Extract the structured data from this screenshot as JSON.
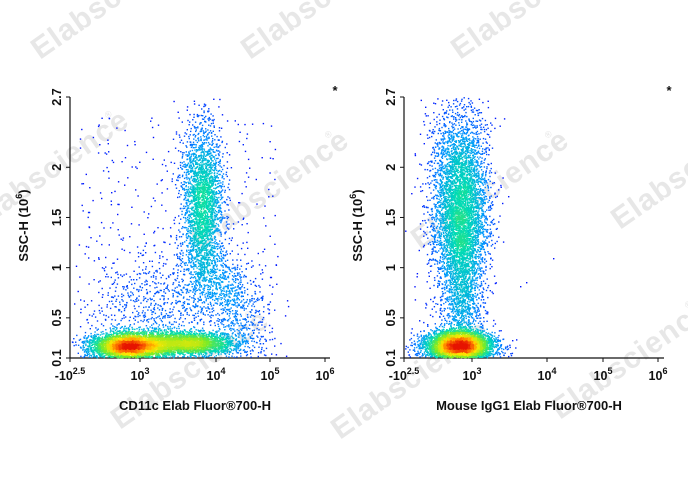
{
  "watermark": {
    "text": "Elabscience",
    "mark": "®"
  },
  "chart_data": [
    {
      "type": "scatter",
      "title": "",
      "xlabel": "CD11c Elab Fluor®700-H",
      "ylabel": {
        "base": "SSC-H (10",
        "exp": "6",
        "close": ")"
      },
      "corner_mark": "*",
      "x_scale": "biexponential",
      "x_ticks": [
        {
          "base": "-10",
          "exp": "2.5",
          "v": -316
        },
        {
          "base": "10",
          "exp": "3",
          "v": 1000
        },
        {
          "base": "10",
          "exp": "4",
          "v": 10000
        },
        {
          "base": "10",
          "exp": "5",
          "v": 100000
        },
        {
          "base": "10",
          "exp": "6",
          "v": 1000000
        }
      ],
      "y_ticks": [
        {
          "label": "0.1",
          "v": 0.1
        },
        {
          "label": "0.5",
          "v": 0.5
        },
        {
          "label": "1",
          "v": 1
        },
        {
          "label": "1.5",
          "v": 1.5
        },
        {
          "label": "2",
          "v": 2
        },
        {
          "label": "2.7",
          "v": 2.7
        }
      ],
      "ylim": [
        0.1,
        2.7
      ],
      "populations": [
        {
          "x": 320,
          "y": 0.22,
          "count": 4200
        },
        {
          "x": 4000,
          "y": 0.25,
          "count": 2600
        },
        {
          "x": 6500,
          "y": 1.6,
          "count": 2800
        },
        {
          "x": 13000,
          "y": 0.85,
          "count": 320
        },
        {
          "x": 30000,
          "y": 0.45,
          "count": 380
        },
        {
          "x": 1800,
          "y": 0.6,
          "count": 700
        }
      ]
    },
    {
      "type": "scatter",
      "title": "",
      "xlabel": "Mouse IgG1 Elab Fluor®700-H",
      "ylabel": {
        "base": "SSC-H (10",
        "exp": "6",
        "close": ")"
      },
      "corner_mark": "*",
      "x_scale": "biexponential",
      "x_ticks": [
        {
          "base": "-10",
          "exp": "2.5",
          "v": -316
        },
        {
          "base": "10",
          "exp": "3",
          "v": 1000
        },
        {
          "base": "10",
          "exp": "4",
          "v": 10000
        },
        {
          "base": "10",
          "exp": "5",
          "v": 100000
        },
        {
          "base": "10",
          "exp": "6",
          "v": 1000000
        }
      ],
      "y_ticks": [
        {
          "label": "0.1",
          "v": 0.1
        },
        {
          "label": "0.5",
          "v": 0.5
        },
        {
          "label": "1",
          "v": 1
        },
        {
          "label": "1.5",
          "v": 1.5
        },
        {
          "label": "2",
          "v": 2
        },
        {
          "label": "2.7",
          "v": 2.7
        }
      ],
      "ylim": [
        0.1,
        2.7
      ],
      "populations": [
        {
          "x": 250,
          "y": 0.22,
          "count": 5200
        },
        {
          "x": 280,
          "y": 1.6,
          "count": 4800
        },
        {
          "x": 350,
          "y": 0.75,
          "count": 1100
        }
      ]
    }
  ]
}
